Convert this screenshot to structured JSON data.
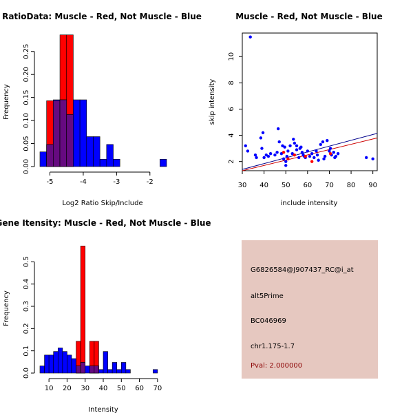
{
  "chart_data": [
    {
      "type": "bar",
      "title": "RatioData: Muscle - Red, Not Muscle - Blue",
      "xlabel": "Log2 Ratio Skip/Include",
      "ylabel": "Frequency",
      "xlim": [
        -5.3,
        -1.5
      ],
      "ylim": [
        0,
        0.29
      ],
      "xticks": [
        -5,
        -4,
        -3,
        -2
      ],
      "xtick_labels": [
        "-5",
        "-4",
        "-3",
        "-2"
      ],
      "yticks": [
        0,
        0.05,
        0.1,
        0.15,
        0.2,
        0.25
      ],
      "ytick_labels": [
        "0.00",
        "0.05",
        "0.10",
        "0.15",
        "0.20",
        "0.25"
      ],
      "bin_edges": [
        -5.3,
        -5.1,
        -4.9,
        -4.7,
        -4.5,
        -4.3,
        -4.1,
        -3.9,
        -3.7,
        -3.5,
        -3.3,
        -3.1,
        -2.9,
        -2.7,
        -2.5,
        -2.3,
        -2.1,
        -1.9,
        -1.7,
        -1.5
      ],
      "series": [
        {
          "name": "Muscle",
          "color": "#ff0000",
          "values": [
            0,
            0.143,
            0.143,
            0.286,
            0.286,
            0,
            0,
            0,
            0,
            0,
            0,
            0,
            0,
            0,
            0,
            0,
            0,
            0,
            0
          ]
        },
        {
          "name": "Not Muscle",
          "color": "#0000ff",
          "values": [
            0.032,
            0.048,
            0.145,
            0.145,
            0.113,
            0.145,
            0.145,
            0.065,
            0.065,
            0.016,
            0.048,
            0.016,
            0,
            0,
            0,
            0,
            0,
            0,
            0.016
          ]
        }
      ],
      "overlap_color": "#660a80"
    },
    {
      "type": "scatter",
      "title": "Muscle - Red, Not Muscle - Blue",
      "xlabel": "include intensity",
      "ylabel": "skip intensity",
      "xlim": [
        30,
        92
      ],
      "ylim": [
        1.3,
        11.8
      ],
      "xticks": [
        30,
        40,
        50,
        60,
        70,
        80,
        90
      ],
      "yticks": [
        2,
        4,
        6,
        8,
        10
      ],
      "series": [
        {
          "name": "Not Muscle",
          "color": "#0000ff",
          "x": [
            33.7,
            31.5,
            32.5,
            36,
            36.5,
            38.5,
            39,
            39.5,
            40,
            41,
            42,
            43,
            45,
            46,
            46.5,
            47,
            48,
            49,
            49.5,
            50,
            50.5,
            51,
            52,
            53,
            54,
            55,
            56,
            57,
            57.5,
            58,
            59,
            60,
            61,
            62,
            63,
            64,
            65,
            66,
            67,
            68,
            69,
            70,
            71,
            72,
            73,
            74,
            87,
            90,
            53.5,
            55,
            56.5,
            58.5,
            64.5,
            67.5,
            70.5,
            72.5,
            50,
            48.5
          ],
          "y": [
            11.5,
            3.2,
            2.8,
            2.5,
            2.3,
            3.8,
            3,
            4.2,
            2.3,
            2.5,
            2.4,
            2.6,
            2.5,
            2.7,
            4.5,
            3.5,
            2.6,
            2.2,
            3.1,
            1.7,
            2.4,
            2.8,
            3.2,
            2.6,
            3.4,
            2.9,
            2.3,
            3.1,
            2.7,
            2.5,
            2.3,
            2.8,
            2.4,
            2.6,
            2.3,
            2.8,
            2.1,
            3.3,
            3.5,
            2.4,
            3.6,
            2.8,
            2.5,
            2.7,
            2.4,
            2.6,
            2.3,
            2.2,
            3.7,
            3.2,
            3,
            2.4,
            2.5,
            2.2,
            3.0,
            2.3,
            2.0,
            3.2
          ]
        },
        {
          "name": "Muscle",
          "color": "#ff0000",
          "x": [
            49,
            51,
            59,
            62,
            70.5,
            54
          ],
          "y": [
            2.7,
            2.2,
            2.4,
            2.0,
            2.6,
            2.5
          ]
        }
      ],
      "fit_lines": [
        {
          "name": "Not Muscle fit",
          "color": "#00008b",
          "x": [
            30,
            92
          ],
          "y": [
            1.4,
            4.15
          ]
        },
        {
          "name": "Muscle fit",
          "color": "#cd0000",
          "x": [
            30,
            92
          ],
          "y": [
            1.3,
            3.8
          ]
        }
      ]
    },
    {
      "type": "bar",
      "title": "Gene Itensity: Muscle - Red, Not Muscle - Blue",
      "xlabel": "Intensity",
      "ylabel": "Frequency",
      "xlim": [
        5,
        75
      ],
      "ylim": [
        0,
        0.6
      ],
      "xticks": [
        10,
        20,
        30,
        40,
        50,
        60,
        70
      ],
      "xtick_labels": [
        "10",
        "20",
        "30",
        "40",
        "50",
        "60",
        "70"
      ],
      "yticks": [
        0,
        0.1,
        0.2,
        0.3,
        0.4,
        0.5
      ],
      "ytick_labels": [
        "0.0",
        "0.1",
        "0.2",
        "0.3",
        "0.4",
        "0.5"
      ],
      "bin_edges": [
        5,
        7.5,
        10,
        12.5,
        15,
        17.5,
        20,
        22.5,
        25,
        27.5,
        30,
        32.5,
        35,
        37.5,
        40,
        42.5,
        45,
        47.5,
        50,
        52.5,
        55,
        57.5,
        60,
        62.5,
        65,
        67.5,
        70,
        72.5,
        75
      ],
      "series": [
        {
          "name": "Muscle",
          "color": "#ff0000",
          "values": [
            0,
            0,
            0,
            0,
            0,
            0,
            0,
            0,
            0.143,
            0.571,
            0,
            0.143,
            0.143,
            0,
            0,
            0,
            0,
            0,
            0,
            0,
            0,
            0,
            0,
            0,
            0,
            0,
            0,
            0
          ]
        },
        {
          "name": "Not Muscle",
          "color": "#0000ff",
          "values": [
            0.032,
            0.081,
            0.081,
            0.097,
            0.113,
            0.097,
            0.081,
            0.065,
            0.032,
            0.048,
            0.032,
            0.032,
            0.032,
            0.016,
            0.097,
            0.016,
            0.048,
            0.016,
            0.048,
            0.016,
            0,
            0,
            0,
            0,
            0,
            0.016,
            0,
            0
          ]
        }
      ],
      "overlap_color": "#660a80"
    }
  ],
  "info": {
    "probe_id": "G6826584@J907437_RC@i_at",
    "event_type": "alt5Prime",
    "accession": "BC046969",
    "location": "chr1.175-1.7",
    "pval": "Pval: 2.000000"
  }
}
